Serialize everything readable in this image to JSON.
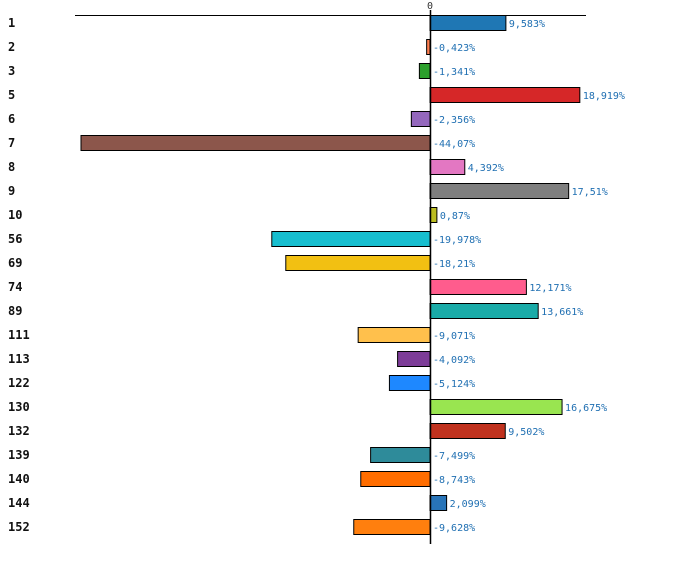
{
  "chart_data": {
    "type": "bar",
    "orientation": "horizontal",
    "title": "",
    "xlabel": "",
    "ylabel": "",
    "zero_label": "0",
    "xlim": [
      -44.07,
      18.919
    ],
    "categories": [
      "1",
      "2",
      "3",
      "5",
      "6",
      "7",
      "8",
      "9",
      "10",
      "56",
      "69",
      "74",
      "89",
      "111",
      "113",
      "122",
      "130",
      "132",
      "139",
      "140",
      "144",
      "152"
    ],
    "values": [
      9.583,
      -0.423,
      -1.341,
      18.919,
      -2.356,
      -44.07,
      4.392,
      17.51,
      0.87,
      -19.978,
      -18.21,
      12.171,
      13.661,
      -9.071,
      -4.092,
      -5.124,
      16.675,
      9.502,
      -7.499,
      -8.743,
      2.099,
      -9.628
    ],
    "value_labels": [
      "9,583%",
      "-0,423%",
      "-1,341%",
      "18,919%",
      "-2,356%",
      "-44,07%",
      "4,392%",
      "17,51%",
      "0,87%",
      "-19,978%",
      "-18,21%",
      "12,171%",
      "13,661%",
      "-9,071%",
      "-4,092%",
      "-5,124%",
      "16,675%",
      "9,502%",
      "-7,499%",
      "-8,743%",
      "2,099%",
      "-9,628%"
    ],
    "colors": [
      "#1f77b4",
      "#ff7f50",
      "#2ca02c",
      "#d62728",
      "#9467bd",
      "#8c564b",
      "#e377c2",
      "#7f7f7f",
      "#bcbd22",
      "#17becf",
      "#f2c012",
      "#ff5c8d",
      "#1aaba8",
      "#ffc04c",
      "#7d3c98",
      "#1e88ff",
      "#99e550",
      "#c0321e",
      "#2e8b9a",
      "#ff6d00",
      "#2874b8",
      "#ff7f0e"
    ]
  }
}
